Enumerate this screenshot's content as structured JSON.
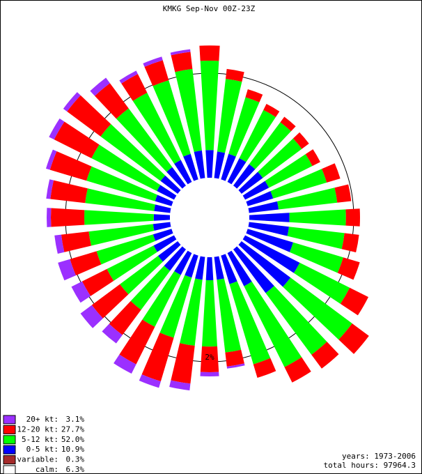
{
  "chart_data": {
    "type": "windrose",
    "title": "KMKG Sep-Nov 00Z-23Z",
    "rings": [
      {
        "value": 2,
        "label": "2%"
      }
    ],
    "series": [
      {
        "name": "20+ kt:",
        "color": "#9b30ff",
        "total": 3.1,
        "total_label": "3.1%",
        "values": [
          0,
          0,
          0,
          0,
          0,
          0,
          0,
          0,
          0,
          0,
          0,
          0,
          0,
          0,
          0,
          0,
          0,
          0.04,
          0.08,
          0.13,
          0.13,
          0.2,
          0.2,
          0.27,
          0.23,
          0.24,
          0.13,
          0.08,
          0.08,
          0.08,
          0.11,
          0.09,
          0.13,
          0.07,
          0.07,
          0.05
        ]
      },
      {
        "name": "12-20 kt:",
        "color": "#ff0000",
        "total": 27.7,
        "total_label": "27.7%",
        "values": [
          0.29,
          0.19,
          0.16,
          0.13,
          0.13,
          0.17,
          0.17,
          0.27,
          0.27,
          0.27,
          0.28,
          0.33,
          0.4,
          0.4,
          0.33,
          0.33,
          0.27,
          0.27,
          0.49,
          0.73,
          0.87,
          0.8,
          0.6,
          0.67,
          0.53,
          0.53,
          0.53,
          0.64,
          0.67,
          0.73,
          0.8,
          0.8,
          0.6,
          0.4,
          0.4,
          0.33
        ]
      },
      {
        "name": "5-12 kt:",
        "color": "#00ff00",
        "total": 52.0,
        "total_label": "52.0%",
        "values": [
          1.71,
          1.4,
          1.13,
          1.03,
          1.0,
          0.93,
          0.93,
          1.07,
          1.13,
          1.08,
          1.07,
          1.0,
          1.07,
          1.47,
          1.47,
          1.73,
          1.6,
          1.4,
          1.27,
          1.27,
          1.2,
          1.11,
          0.93,
          0.91,
          1.0,
          1.13,
          1.24,
          1.33,
          1.33,
          1.37,
          1.4,
          1.43,
          1.4,
          1.44,
          1.47,
          1.57
        ]
      },
      {
        "name": "0-5 kt:",
        "color": "#0000ff",
        "total": 10.9,
        "total_label": "10.9%",
        "values": [
          0.53,
          0.51,
          0.51,
          0.51,
          0.51,
          0.51,
          0.51,
          0.51,
          0.57,
          0.77,
          0.77,
          0.91,
          1.17,
          1.17,
          1.04,
          0.71,
          0.57,
          0.44,
          0.44,
          0.44,
          0.44,
          0.47,
          0.51,
          0.47,
          0.44,
          0.37,
          0.33,
          0.31,
          0.31,
          0.33,
          0.37,
          0.41,
          0.44,
          0.47,
          0.51,
          0.53
        ]
      },
      {
        "name": "variable:",
        "color": "#a52a2a",
        "total": 0.3,
        "total_label": "0.3%"
      },
      {
        "name": "calm:",
        "color": "#ffffff",
        "total": 6.3,
        "total_label": "6.3%"
      }
    ],
    "footer": [
      "years: 1973-2006",
      "total hours: 97964.3"
    ]
  }
}
